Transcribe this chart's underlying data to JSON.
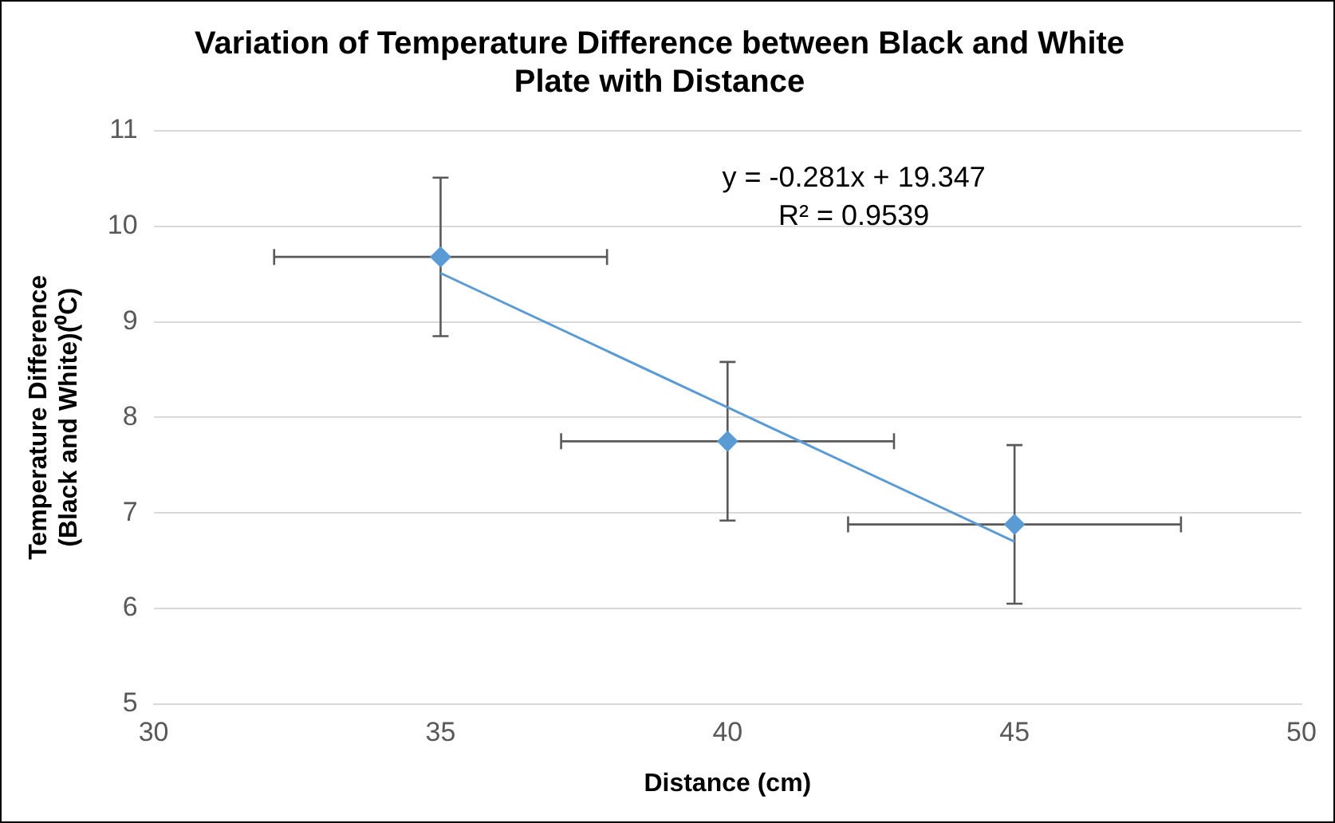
{
  "chart_data": {
    "type": "scatter",
    "title": "Variation of Temperature Difference between Black and White\nPlate with Distance",
    "xlabel": "Distance (cm)",
    "ylabel": "Temperature Difference\n(Black and White)(⁰C)",
    "x": [
      35,
      40,
      45
    ],
    "series": [
      {
        "color": "#5b9bd5",
        "values": [
          9.68,
          7.75,
          6.88
        ],
        "errors": [
          0.83,
          0.83,
          0.83
        ],
        "xerrors": [
          2.9,
          2.9,
          2.9
        ],
        "marker": "diamond"
      },
      {
        "type": "line",
        "color": "#5b9bd5",
        "x": [
          35,
          45
        ],
        "values": [
          9.51,
          6.7
        ],
        "marker": "none",
        "line_style": "solid"
      }
    ],
    "xlim": [
      30,
      50
    ],
    "xticks": [
      30,
      35,
      40,
      45,
      50
    ],
    "ylim": [
      5,
      11
    ],
    "yticks": [
      5,
      6,
      7,
      8,
      9,
      10,
      11
    ],
    "grid": "y",
    "legend": false,
    "annotations": [
      "y = -0.281x + 19.347",
      "R² = 0.9539"
    ]
  }
}
